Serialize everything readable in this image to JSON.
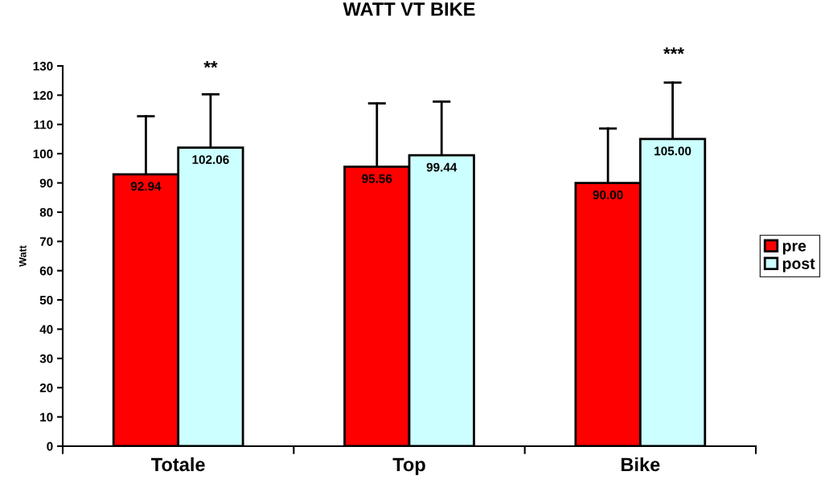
{
  "chart_data": {
    "type": "bar",
    "title": "WATT VT BIKE",
    "ylabel": "Watt",
    "categories": [
      "Totale",
      "Top",
      "Bike"
    ],
    "series": [
      {
        "name": "pre",
        "color": "#ff0000",
        "values": [
          92.94,
          95.56,
          90.0
        ],
        "errors": [
          [
            92.94,
            112.8
          ],
          [
            95.56,
            117.2
          ],
          [
            90.0,
            108.6
          ]
        ],
        "value_labels": [
          "92.94",
          "95.56",
          "90.00"
        ]
      },
      {
        "name": "post",
        "color": "#ccffff",
        "values": [
          102.06,
          99.44,
          105.0
        ],
        "errors": [
          [
            102.06,
            120.3
          ],
          [
            99.44,
            117.8
          ],
          [
            105.0,
            124.3
          ]
        ],
        "value_labels": [
          "102.06",
          "99.44",
          "105.00"
        ]
      }
    ],
    "annotations": [
      "**",
      "***"
    ],
    "ylim": [
      0,
      130
    ],
    "yticks": [
      0,
      10,
      20,
      30,
      40,
      50,
      60,
      70,
      80,
      90,
      100,
      110,
      120,
      130
    ],
    "grid": false,
    "legend": "right"
  }
}
